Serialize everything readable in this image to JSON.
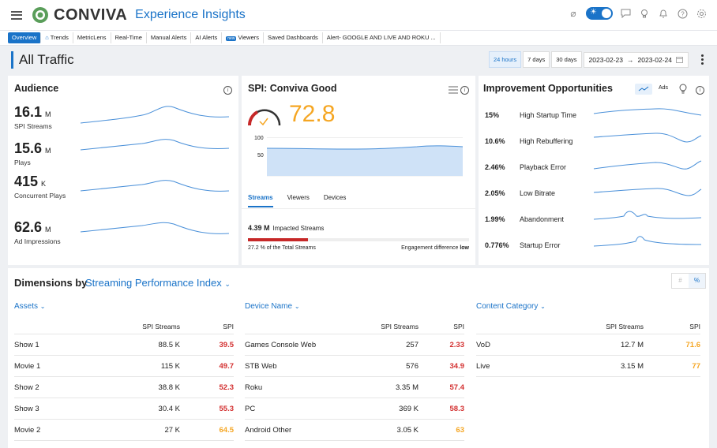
{
  "app": {
    "brand": "CONVIVA",
    "title": "Experience Insights"
  },
  "tabs": [
    {
      "label": "Overview",
      "active": true
    },
    {
      "label": "Trends",
      "icon": "home-icon"
    },
    {
      "label": "MetricLens"
    },
    {
      "label": "Real-Time"
    },
    {
      "label": "Manual Alerts"
    },
    {
      "label": "AI Alerts"
    },
    {
      "label": "Viewers",
      "badge": "new"
    },
    {
      "label": "Saved Dashboards"
    },
    {
      "label": "Alert- GOOGLE AND LIVE AND ROKU ..."
    }
  ],
  "page": {
    "title": "All Traffic",
    "time_buttons": [
      "24 hours",
      "7 days",
      "30 days"
    ],
    "active_time": "24 hours",
    "date_start": "2023-02-23",
    "date_arrow": "→",
    "date_end": "2023-02-24"
  },
  "audience": {
    "title": "Audience",
    "metrics": [
      {
        "value": "16.1",
        "unit": "M",
        "label": "SPI Streams"
      },
      {
        "value": "15.6",
        "unit": "M",
        "label": "Plays"
      },
      {
        "value": "415",
        "unit": "K",
        "label": "Concurrent Plays"
      },
      {
        "value": "62.6",
        "unit": "M",
        "label": "Ad Impressions"
      }
    ]
  },
  "spi": {
    "title": "SPI: Conviva Good",
    "value": "72.8",
    "axis_100": "100",
    "axis_50": "50",
    "tabs": [
      "Streams",
      "Viewers",
      "Devices"
    ],
    "active_tab": "Streams",
    "impacted_value": "4.39 M",
    "impacted_label": "Impacted Streams",
    "impacted_fraction": 0.272,
    "total_note": "27.2 % of the Total Streams",
    "engagement_label": "Engagement difference",
    "engagement_value": "low"
  },
  "improvement": {
    "title": "Improvement Opportunities",
    "ads_label": "Ads",
    "items": [
      {
        "pct": "15%",
        "label": "High Startup Time"
      },
      {
        "pct": "10.6%",
        "label": "High Rebuffering"
      },
      {
        "pct": "2.46%",
        "label": "Playback Error"
      },
      {
        "pct": "2.05%",
        "label": "Low Bitrate"
      },
      {
        "pct": "1.99%",
        "label": "Abandonment"
      },
      {
        "pct": "0.776%",
        "label": "Startup Error"
      }
    ]
  },
  "dimensions": {
    "title": "Dimensions by",
    "selector": "Streaming Performance Index",
    "toggle_hash": "#",
    "toggle_pct": "%",
    "col_streams": "SPI Streams",
    "col_spi": "SPI",
    "tables": [
      {
        "title": "Assets",
        "rows": [
          {
            "name": "Show 1",
            "streams": "88.5 K",
            "spi": "39.5",
            "color": "#d32f2f"
          },
          {
            "name": "Movie 1",
            "streams": "115 K",
            "spi": "49.7",
            "color": "#d32f2f"
          },
          {
            "name": "Show 2",
            "streams": "38.8 K",
            "spi": "52.3",
            "color": "#d32f2f"
          },
          {
            "name": "Show 3",
            "streams": "30.4 K",
            "spi": "55.3",
            "color": "#d32f2f"
          },
          {
            "name": "Movie 2",
            "streams": "27 K",
            "spi": "64.5",
            "color": "#f5a623"
          }
        ]
      },
      {
        "title": "Device Name",
        "rows": [
          {
            "name": "Games Console Web",
            "streams": "257",
            "spi": "2.33",
            "color": "#d32f2f"
          },
          {
            "name": "STB Web",
            "streams": "576",
            "spi": "34.9",
            "color": "#d32f2f"
          },
          {
            "name": "Roku",
            "streams": "3.35 M",
            "spi": "57.4",
            "color": "#d32f2f"
          },
          {
            "name": "PC",
            "streams": "369 K",
            "spi": "58.3",
            "color": "#d32f2f"
          },
          {
            "name": "Android Other",
            "streams": "3.05 K",
            "spi": "63",
            "color": "#f5a623"
          }
        ]
      },
      {
        "title": "Content Category",
        "rows": [
          {
            "name": "VoD",
            "streams": "12.7 M",
            "spi": "71.6",
            "color": "#f5a623"
          },
          {
            "name": "Live",
            "streams": "3.15 M",
            "spi": "77",
            "color": "#f5a623"
          }
        ]
      }
    ]
  },
  "colors": {
    "accent": "#1a73c8",
    "bad": "#d32f2f",
    "warn": "#f5a623",
    "sparkline": "#4a90d9"
  }
}
